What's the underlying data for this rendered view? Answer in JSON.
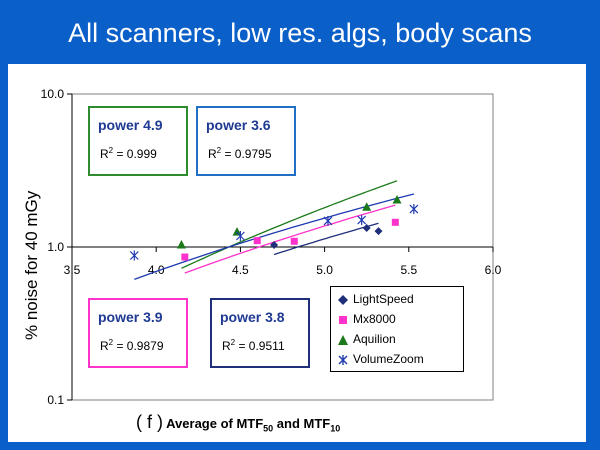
{
  "slide": {
    "title": "All scanners, low res. algs, body scans"
  },
  "chart_data": {
    "type": "scatter",
    "title": "",
    "xlabel": {
      "prefix": "( f )",
      "main": "Average of MTF",
      "sub1": "50",
      "mid": " and MTF",
      "sub2": "10"
    },
    "ylabel": "% noise for 40 mGy",
    "xlim": [
      3.5,
      6.0
    ],
    "ylim": [
      0.1,
      10.0
    ],
    "yscale": "log",
    "x_ticks": [
      "3.5",
      "4.0",
      "4.5",
      "5.0",
      "5.5",
      "6.0"
    ],
    "y_ticks": [
      "10.0",
      "1.0",
      "0.1"
    ],
    "series": [
      {
        "name": "LightSpeed",
        "color": "#1f2f7a",
        "marker": "diamond",
        "points": [
          [
            4.7,
            1.03
          ],
          [
            5.25,
            1.33
          ],
          [
            5.32,
            1.27
          ]
        ],
        "fit": {
          "power": 3.8,
          "x": [
            4.7,
            5.32
          ]
        }
      },
      {
        "name": "Mx8000",
        "color": "#ff33cc",
        "marker": "square",
        "points": [
          [
            4.17,
            0.86
          ],
          [
            4.6,
            1.1
          ],
          [
            4.82,
            1.09
          ],
          [
            5.42,
            1.45
          ]
        ],
        "fit": {
          "power": 3.9,
          "x": [
            4.17,
            5.42
          ]
        }
      },
      {
        "name": "Aquilion",
        "color": "#1a7a1a",
        "marker": "triangle",
        "points": [
          [
            4.15,
            1.03
          ],
          [
            4.48,
            1.25
          ],
          [
            5.25,
            1.82
          ],
          [
            5.43,
            2.03
          ]
        ],
        "fit": {
          "power": 4.9,
          "x": [
            4.15,
            5.43
          ]
        }
      },
      {
        "name": "VolumeZoom",
        "color": "#1f3ab0",
        "marker": "star",
        "points": [
          [
            3.87,
            0.88
          ],
          [
            4.5,
            1.18
          ],
          [
            5.02,
            1.48
          ],
          [
            5.22,
            1.5
          ],
          [
            5.53,
            1.77
          ]
        ],
        "fit": {
          "power": 3.6,
          "x": [
            3.87,
            5.53
          ]
        }
      }
    ],
    "annotations": [
      {
        "power": "power 4.9",
        "r2_label": "R",
        "r2_value": " = 0.999",
        "border": "#2e8b2e"
      },
      {
        "power": "power 3.6",
        "r2_label": "R",
        "r2_value": " = 0.9795",
        "border": "#1f6fc4"
      },
      {
        "power": "power 3.9",
        "r2_label": "R",
        "r2_value": " = 0.9879",
        "border": "#ff33cc"
      },
      {
        "power": "power 3.8",
        "r2_label": "R",
        "r2_value": " = 0.9511",
        "border": "#1f2f7a"
      }
    ],
    "legend_position": "lower-right",
    "grid": false
  }
}
